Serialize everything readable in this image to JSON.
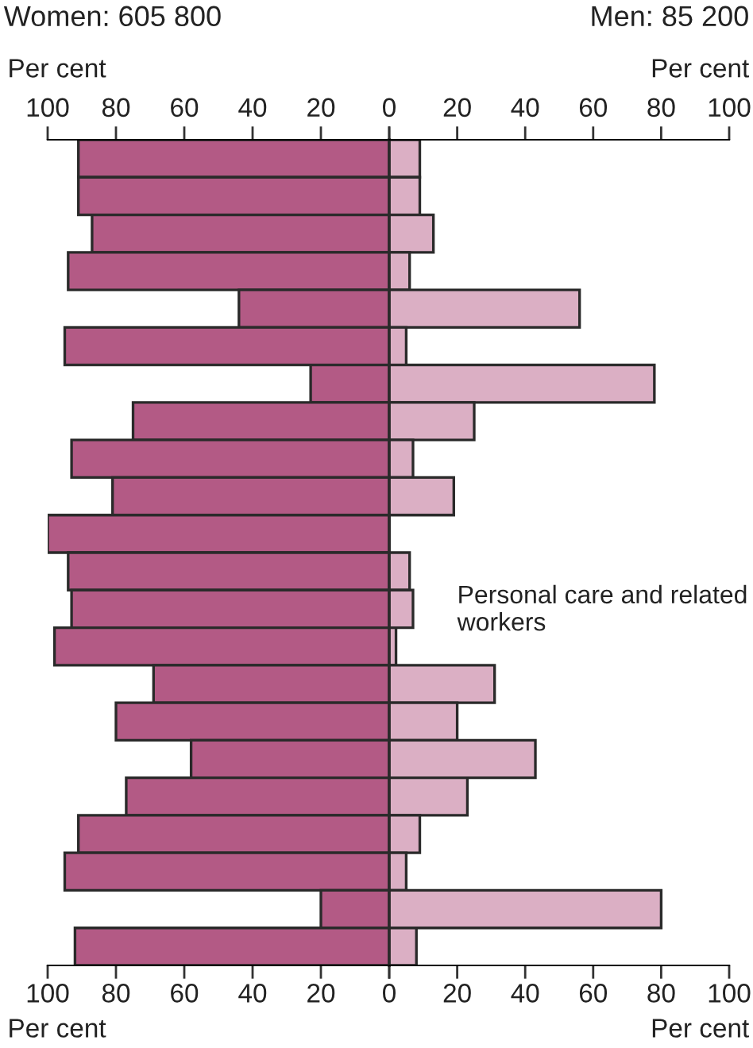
{
  "chart_data": [
    {
      "type": "bar",
      "orientation": "horizontal",
      "title": "Women: 605 800",
      "color": "#b35a85",
      "categories": [
        null,
        null,
        null,
        null,
        null,
        null,
        null,
        null,
        null,
        null,
        null,
        null,
        null,
        null,
        null,
        null,
        null,
        null,
        null,
        null,
        null,
        null
      ],
      "values": [
        91,
        91,
        87,
        94,
        44,
        95,
        23,
        75,
        93,
        81,
        100,
        94,
        93,
        98,
        69,
        80,
        58,
        77,
        91,
        95,
        20,
        92
      ],
      "xlim": [
        100,
        0
      ],
      "xticks": [
        100,
        80,
        60,
        40,
        20,
        0
      ],
      "x2lim": [
        100,
        0
      ],
      "x2ticks": [
        100,
        80,
        60,
        40,
        20,
        0
      ],
      "xlabel": "Per cent",
      "x2label": "Per cent"
    },
    {
      "type": "bar",
      "orientation": "horizontal",
      "title": "Men: 85 200",
      "color": "#dbafc4",
      "categories": [
        null,
        null,
        null,
        null,
        null,
        null,
        null,
        null,
        null,
        null,
        null,
        null,
        null,
        null,
        null,
        null,
        null,
        null,
        null,
        null,
        null,
        null
      ],
      "values": [
        9,
        9,
        13,
        6,
        56,
        5,
        78,
        25,
        7,
        19,
        0,
        6,
        7,
        2,
        31,
        20,
        43,
        23,
        9,
        5,
        80,
        8
      ],
      "xlim": [
        0,
        100
      ],
      "xticks": [
        {
          "value": 0,
          "label": null
        },
        20,
        40,
        60,
        80,
        100
      ],
      "x2lim": [
        0,
        100
      ],
      "x2ticks": [
        {
          "value": 0,
          "label": null
        },
        20,
        40,
        60,
        80,
        100
      ],
      "xlabel": "Per cent",
      "x2label": "Per cent",
      "annotations": [
        "Personal care and related workers"
      ]
    }
  ]
}
